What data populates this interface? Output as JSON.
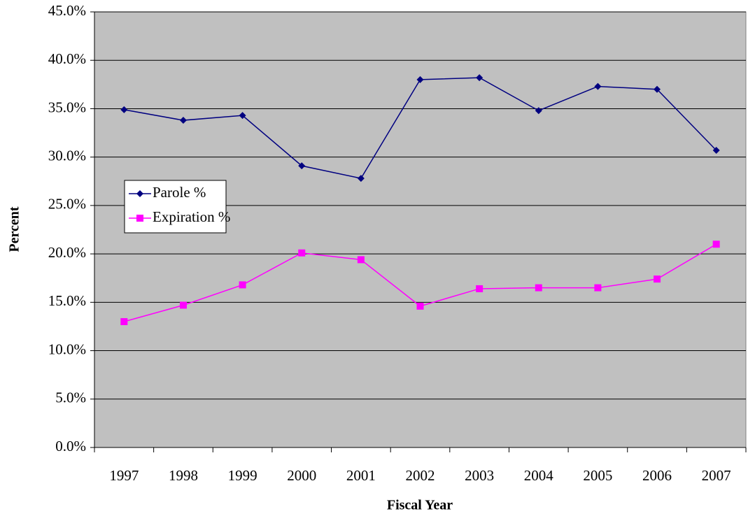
{
  "chart_data": {
    "type": "line",
    "x_label": "Fiscal Year",
    "y_label": "Percent",
    "categories": [
      "1997",
      "1998",
      "1999",
      "2000",
      "2001",
      "2002",
      "2003",
      "2004",
      "2005",
      "2006",
      "2007"
    ],
    "series": [
      {
        "name": "Parole %",
        "color": "#000080",
        "marker": "diamond",
        "values": [
          34.9,
          33.8,
          34.3,
          29.1,
          27.8,
          38.0,
          38.2,
          34.8,
          37.3,
          37.0,
          30.7
        ]
      },
      {
        "name": "Expiration %",
        "color": "#ff00ff",
        "marker": "square",
        "values": [
          13.0,
          14.7,
          16.8,
          20.1,
          19.4,
          14.6,
          16.4,
          16.5,
          16.5,
          17.4,
          21.0
        ]
      }
    ],
    "ylim": [
      0,
      45
    ],
    "yticks": [
      {
        "value": 0,
        "label": "0.0%"
      },
      {
        "value": 5,
        "label": "5.0%"
      },
      {
        "value": 10,
        "label": "10.0%"
      },
      {
        "value": 15,
        "label": "15.0%"
      },
      {
        "value": 20,
        "label": "20.0%"
      },
      {
        "value": 25,
        "label": "25.0%"
      },
      {
        "value": 30,
        "label": "30.0%"
      },
      {
        "value": 35,
        "label": "35.0%"
      },
      {
        "value": 40,
        "label": "40.0%"
      },
      {
        "value": 45,
        "label": "45.0%"
      }
    ],
    "grid": true,
    "plot_background": "#c0c0c0",
    "legend_position": "left"
  }
}
